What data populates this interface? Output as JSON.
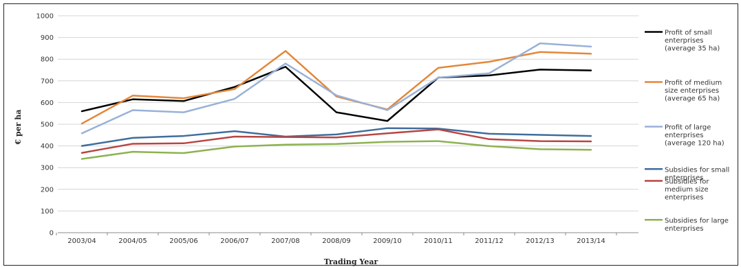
{
  "chart_data": {
    "type": "line",
    "title": "",
    "xlabel": "Trading Year",
    "ylabel": "€ per ha",
    "ylim": [
      0,
      1000
    ],
    "yticks": [
      0,
      100,
      200,
      300,
      400,
      500,
      600,
      700,
      800,
      900,
      1000
    ],
    "grid": true,
    "legend_position": "right",
    "categories": [
      "2003/04",
      "2004/05",
      "2005/06",
      "2006/07",
      "2007/08",
      "2008/09",
      "2009/10",
      "2010/11",
      "2011/12",
      "2012/13",
      "2013/14"
    ],
    "series": [
      {
        "name": "Profit of small enterprises (average 35 ha)",
        "legend_lines": [
          "Profit of small",
          "enterprises",
          "(average  35 ha)"
        ],
        "color": "#000000",
        "values": [
          560,
          615,
          607,
          672,
          765,
          555,
          515,
          715,
          725,
          752,
          748
        ]
      },
      {
        "name": "Profit of medium size enterprises (average 65 ha)",
        "legend_lines": [
          "Profit of medium",
          "size enterprises",
          "(average  65 ha)"
        ],
        "color": "#e3873a",
        "values": [
          503,
          632,
          620,
          662,
          838,
          628,
          568,
          760,
          788,
          833,
          825
        ]
      },
      {
        "name": "Profit of large enterprises (average 120 ha)",
        "legend_lines": [
          "Profit of large",
          "enterprises",
          "(average 120 ha)"
        ],
        "color": "#98b1d8",
        "values": [
          458,
          565,
          555,
          617,
          780,
          633,
          565,
          715,
          735,
          873,
          858
        ]
      },
      {
        "name": "Subsidies for small enterprises",
        "legend_lines": [
          "Subsidies for small",
          "enterprises"
        ],
        "color": "#3e6d9c",
        "values": [
          400,
          437,
          446,
          468,
          443,
          453,
          482,
          480,
          456,
          451,
          446
        ]
      },
      {
        "name": "Subsidies for medium size enterprises",
        "legend_lines": [
          "Subsidies for",
          "medium size",
          "enterprises"
        ],
        "color": "#b94442",
        "values": [
          368,
          410,
          412,
          443,
          441,
          439,
          458,
          476,
          431,
          422,
          421
        ]
      },
      {
        "name": "Subsidies for large enterprises",
        "legend_lines": [
          "Subsidies for large",
          "enterprises"
        ],
        "color": "#8cb250",
        "values": [
          340,
          373,
          367,
          397,
          406,
          409,
          419,
          422,
          399,
          385,
          382
        ]
      }
    ]
  }
}
